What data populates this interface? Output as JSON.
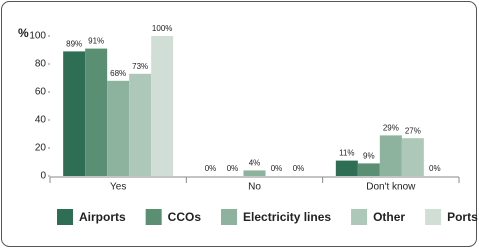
{
  "chart_data": {
    "type": "bar",
    "y_label": "%",
    "categories": [
      "Yes",
      "No",
      "Don't know"
    ],
    "series": [
      {
        "name": "Airports",
        "color": "#2e6e54",
        "values": [
          89,
          0,
          11
        ],
        "value_labels": [
          "89%",
          "0%",
          "11%"
        ]
      },
      {
        "name": "CCOs",
        "color": "#5b8f74",
        "values": [
          91,
          0,
          9
        ],
        "value_labels": [
          "91%",
          "0%",
          "9%"
        ]
      },
      {
        "name": "Electricity lines",
        "color": "#8db29d",
        "values": [
          68,
          4,
          29
        ],
        "value_labels": [
          "68%",
          "4%",
          "29%"
        ]
      },
      {
        "name": "Other",
        "color": "#adc8b8",
        "values": [
          73,
          0,
          27
        ],
        "value_labels": [
          "73%",
          "0%",
          "27%"
        ]
      },
      {
        "name": "Ports",
        "color": "#d0ded5",
        "values": [
          100,
          0,
          0
        ],
        "value_labels": [
          "100%",
          "0%",
          "0%"
        ]
      }
    ],
    "ylim": [
      0,
      100
    ],
    "yticks": [
      0,
      20,
      40,
      60,
      80,
      100
    ],
    "grid": false
  }
}
